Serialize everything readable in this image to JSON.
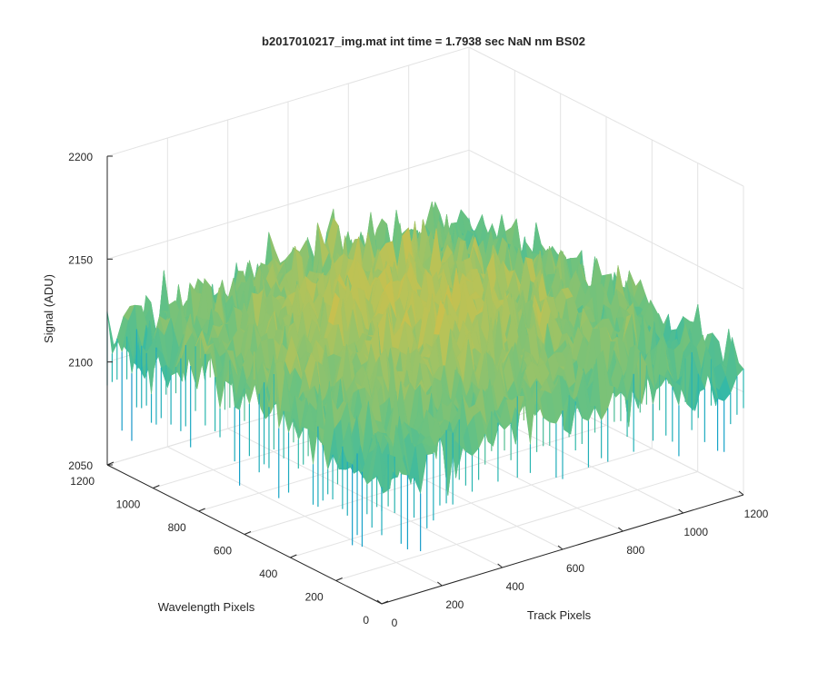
{
  "chart_data": {
    "type": "surface3d",
    "title": "b2017010217_img.mat int time = 1.7938 sec  NaN nm BS02",
    "xlabel": "Track Pixels",
    "ylabel": "Wavelength Pixels",
    "zlabel": "Signal (ADU)",
    "xlim": [
      0,
      1200
    ],
    "ylim": [
      0,
      1200
    ],
    "zlim": [
      2050,
      2200
    ],
    "x_ticks": [
      "0",
      "200",
      "400",
      "600",
      "800",
      "1000",
      "1200"
    ],
    "y_ticks": [
      "0",
      "200",
      "400",
      "600",
      "800",
      "1000",
      "1200"
    ],
    "z_ticks": [
      "2050",
      "2100",
      "2150",
      "2200"
    ],
    "grid": true,
    "colormap": [
      "#1f7fc9",
      "#16a4c8",
      "#2ab7ad",
      "#6bc280",
      "#b4c35a",
      "#e2bd3f",
      "#f1c22b"
    ],
    "surface_range": [
      2060,
      2178
    ],
    "surface_mean_edge": 2108,
    "surface_mean_center": 2140
  }
}
